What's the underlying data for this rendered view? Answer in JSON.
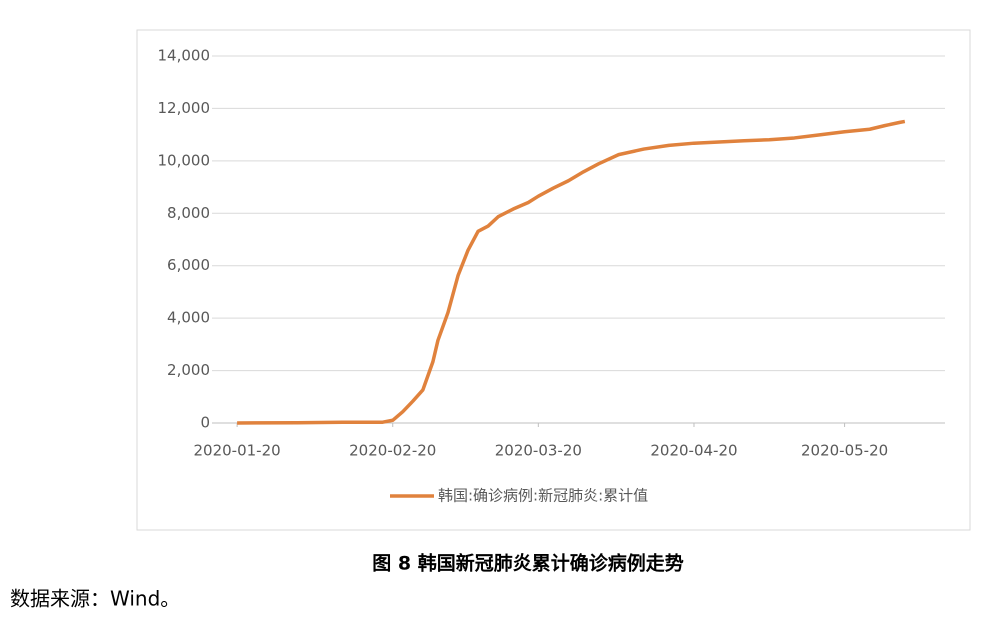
{
  "chart_data": {
    "type": "line",
    "x": [
      "2020-01-20",
      "2020-02-01",
      "2020-02-10",
      "2020-02-18",
      "2020-02-20",
      "2020-02-22",
      "2020-02-24",
      "2020-02-26",
      "2020-02-28",
      "2020-02-29",
      "2020-03-02",
      "2020-03-04",
      "2020-03-06",
      "2020-03-08",
      "2020-03-10",
      "2020-03-12",
      "2020-03-15",
      "2020-03-18",
      "2020-03-20",
      "2020-03-23",
      "2020-03-26",
      "2020-03-29",
      "2020-04-01",
      "2020-04-05",
      "2020-04-10",
      "2020-04-15",
      "2020-04-20",
      "2020-04-25",
      "2020-04-30",
      "2020-05-05",
      "2020-05-10",
      "2020-05-15",
      "2020-05-20",
      "2020-05-25",
      "2020-05-28",
      "2020-05-31",
      "2020-06-01"
    ],
    "series": [
      {
        "name": "韩国:确诊病例:新冠肺炎:累计值",
        "color": "#e0823d",
        "values": [
          1,
          12,
          27,
          31,
          104,
          433,
          833,
          1261,
          2337,
          3150,
          4212,
          5621,
          6593,
          7313,
          7513,
          7869,
          8162,
          8413,
          8652,
          8961,
          9241,
          9583,
          9887,
          10237,
          10450,
          10591,
          10674,
          10718,
          10765,
          10806,
          10874,
          10991,
          11110,
          11206,
          11344,
          11468,
          11503
        ]
      }
    ],
    "xlim": [
      "2020-01-15",
      "2020-06-09"
    ],
    "xticks": [
      "2020-01-20",
      "2020-02-20",
      "2020-03-20",
      "2020-04-20",
      "2020-05-20"
    ],
    "ylim": [
      0,
      14000
    ],
    "yticks": [
      0,
      {
        "value": 2000,
        "label": "2,000"
      },
      {
        "value": 4000,
        "label": "4,000"
      },
      {
        "value": 6000,
        "label": "6,000"
      },
      {
        "value": 8000,
        "label": "8,000"
      },
      {
        "value": 10000,
        "label": "10,000"
      },
      {
        "value": 12000,
        "label": "12,000"
      },
      {
        "value": 14000,
        "label": "14,000"
      }
    ],
    "grid": true,
    "legend": "bottom"
  },
  "caption": "图 8 韩国新冠肺炎累计确诊病例走势",
  "source": "数据来源：Wind。"
}
